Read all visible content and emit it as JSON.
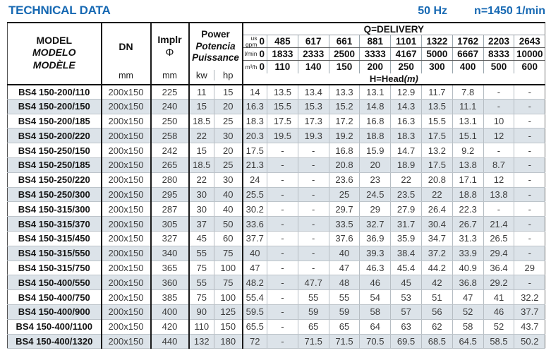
{
  "page": {
    "title": "TECHNICAL DATA",
    "frequency": "50 Hz",
    "speed": "n=1450 1/min"
  },
  "colors": {
    "accent_blue": "#1769b3",
    "row_alt": "#dce3e9",
    "border_dark": "#1a1a1a"
  },
  "table": {
    "headers": {
      "model_lines": [
        "MODEL",
        "MODELO",
        "MODÈLE"
      ],
      "dn": "DN",
      "dn_unit": "mm",
      "impeller": "Implr",
      "impeller_symbol": "Φ",
      "impeller_unit": "mm",
      "power_lines": [
        "Power",
        "Potencia",
        "Puissance"
      ],
      "power_unit_kw": "kw",
      "power_unit_hp": "hp",
      "delivery_title": "Q=DELIVERY",
      "delivery_rows": [
        {
          "label_top": "us",
          "label": "gpm",
          "zero": "0",
          "values": [
            "485",
            "617",
            "661",
            "881",
            "1101",
            "1322",
            "1762",
            "2203",
            "2643"
          ]
        },
        {
          "label": "l/min",
          "zero": "0",
          "values": [
            "1833",
            "2333",
            "2500",
            "3333",
            "4167",
            "5000",
            "6667",
            "8333",
            "10000"
          ]
        },
        {
          "label": "m³/h",
          "zero": "0",
          "values": [
            "110",
            "140",
            "150",
            "200",
            "250",
            "300",
            "400",
            "500",
            "600"
          ]
        }
      ],
      "head_title": "H=Head",
      "head_unit": "(m)"
    },
    "rows": [
      {
        "model": "BS4 150-200/110",
        "dn": "200x150",
        "impeller": "225",
        "kw": "11",
        "hp": "15",
        "head": [
          "14",
          "13.5",
          "13.4",
          "13.3",
          "13.1",
          "12.9",
          "11.7",
          "7.8",
          "-",
          "-"
        ]
      },
      {
        "model": "BS4 150-200/150",
        "dn": "200x150",
        "impeller": "240",
        "kw": "15",
        "hp": "20",
        "head": [
          "16.3",
          "15.5",
          "15.3",
          "15.2",
          "14.8",
          "14.3",
          "13.5",
          "11.1",
          "-",
          "-"
        ]
      },
      {
        "model": "BS4 150-200/185",
        "dn": "200x150",
        "impeller": "250",
        "kw": "18.5",
        "hp": "25",
        "head": [
          "18.3",
          "17.5",
          "17.3",
          "17.2",
          "16.8",
          "16.3",
          "15.5",
          "13.1",
          "10",
          "-"
        ]
      },
      {
        "model": "BS4 150-200/220",
        "dn": "200x150",
        "impeller": "258",
        "kw": "22",
        "hp": "30",
        "head": [
          "20.3",
          "19.5",
          "19.3",
          "19.2",
          "18.8",
          "18.3",
          "17.5",
          "15.1",
          "12",
          "-"
        ]
      },
      {
        "model": "BS4 150-250/150",
        "dn": "200x150",
        "impeller": "242",
        "kw": "15",
        "hp": "20",
        "head": [
          "17.5",
          "-",
          "-",
          "16.8",
          "15.9",
          "14.7",
          "13.2",
          "9.2",
          "-",
          "-"
        ]
      },
      {
        "model": "BS4 150-250/185",
        "dn": "200x150",
        "impeller": "265",
        "kw": "18.5",
        "hp": "25",
        "head": [
          "21.3",
          "-",
          "-",
          "20.8",
          "20",
          "18.9",
          "17.5",
          "13.8",
          "8.7",
          "-"
        ]
      },
      {
        "model": "BS4 150-250/220",
        "dn": "200x150",
        "impeller": "280",
        "kw": "22",
        "hp": "30",
        "head": [
          "24",
          "-",
          "-",
          "23.6",
          "23",
          "22",
          "20.8",
          "17.1",
          "12",
          "-"
        ]
      },
      {
        "model": "BS4 150-250/300",
        "dn": "200x150",
        "impeller": "295",
        "kw": "30",
        "hp": "40",
        "head": [
          "25.5",
          "-",
          "-",
          "25",
          "24.5",
          "23.5",
          "22",
          "18.8",
          "13.8",
          "-"
        ]
      },
      {
        "model": "BS4 150-315/300",
        "dn": "200x150",
        "impeller": "287",
        "kw": "30",
        "hp": "40",
        "head": [
          "30.2",
          "-",
          "-",
          "29.7",
          "29",
          "27.9",
          "26.4",
          "22.3",
          "-",
          "-"
        ]
      },
      {
        "model": "BS4 150-315/370",
        "dn": "200x150",
        "impeller": "305",
        "kw": "37",
        "hp": "50",
        "head": [
          "33.6",
          "-",
          "-",
          "33.5",
          "32.7",
          "31.7",
          "30.4",
          "26.7",
          "21.4",
          "-"
        ]
      },
      {
        "model": "BS4 150-315/450",
        "dn": "200x150",
        "impeller": "327",
        "kw": "45",
        "hp": "60",
        "head": [
          "37.7",
          "-",
          "-",
          "37.6",
          "36.9",
          "35.9",
          "34.7",
          "31.3",
          "26.5",
          "-"
        ]
      },
      {
        "model": "BS4 150-315/550",
        "dn": "200x150",
        "impeller": "340",
        "kw": "55",
        "hp": "75",
        "head": [
          "40",
          "-",
          "-",
          "40",
          "39.3",
          "38.4",
          "37.2",
          "33.9",
          "29.4",
          "-"
        ]
      },
      {
        "model": "BS4 150-315/750",
        "dn": "200x150",
        "impeller": "365",
        "kw": "75",
        "hp": "100",
        "head": [
          "47",
          "-",
          "-",
          "47",
          "46.3",
          "45.4",
          "44.2",
          "40.9",
          "36.4",
          "29"
        ]
      },
      {
        "model": "BS4 150-400/550",
        "dn": "200x150",
        "impeller": "360",
        "kw": "55",
        "hp": "75",
        "head": [
          "48.2",
          "-",
          "47.7",
          "48",
          "46",
          "45",
          "42",
          "36.8",
          "29.2",
          "-"
        ]
      },
      {
        "model": "BS4 150-400/750",
        "dn": "200x150",
        "impeller": "385",
        "kw": "75",
        "hp": "100",
        "head": [
          "55.4",
          "-",
          "55",
          "55",
          "54",
          "53",
          "51",
          "47",
          "41",
          "32.2"
        ]
      },
      {
        "model": "BS4 150-400/900",
        "dn": "200x150",
        "impeller": "400",
        "kw": "90",
        "hp": "125",
        "head": [
          "59.5",
          "-",
          "59",
          "59",
          "58",
          "57",
          "56",
          "52",
          "46",
          "37.7"
        ]
      },
      {
        "model": "BS4 150-400/1100",
        "dn": "200x150",
        "impeller": "420",
        "kw": "110",
        "hp": "150",
        "head": [
          "65.5",
          "-",
          "65",
          "65",
          "64",
          "63",
          "62",
          "58",
          "52",
          "43.7"
        ]
      },
      {
        "model": "BS4 150-400/1320",
        "dn": "200x150",
        "impeller": "440",
        "kw": "132",
        "hp": "180",
        "head": [
          "72",
          "-",
          "71.5",
          "71.5",
          "70.5",
          "69.5",
          "68.5",
          "64.5",
          "58.5",
          "50.2"
        ]
      }
    ]
  }
}
